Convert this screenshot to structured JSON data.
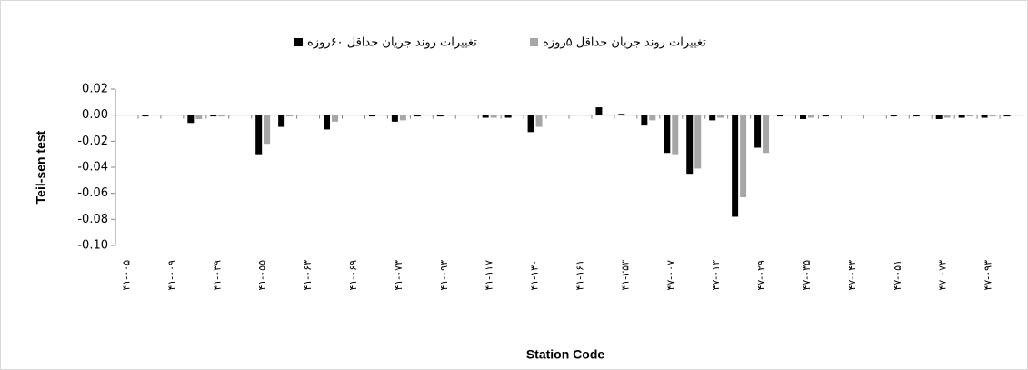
{
  "chart_data": {
    "type": "bar",
    "categories": [
      "۴۱-۰۰۵",
      null,
      "۴۱-۰۰۹",
      null,
      "۴۱-۰۳۹",
      null,
      "۴۱-۰۵۵",
      null,
      "۴۱-۰۶۳",
      null,
      "۴۱-۰۶۹",
      null,
      "۴۱-۰۷۳",
      null,
      "۴۱-۰۹۳",
      null,
      "۴۱-۱۱۷",
      null,
      "۴۱-۱۳۰",
      null,
      "۴۱-۱۶۱",
      null,
      "۴۱-۲۵۳",
      null,
      "۴۷-۰۰۷",
      null,
      "۴۷-۰۱۳",
      null,
      "۴۷-۰۲۹",
      null,
      "۴۷-۰۳۵",
      null,
      "۴۷-۰۴۳",
      null,
      "۴۷-۰۵۱",
      null,
      "۴۷-۰۷۳",
      null,
      "۴۷-۰۹۳",
      null
    ],
    "series": [
      {
        "name": "تغییرات روند جریان حداقل ۶۰روزه",
        "color": "#000000",
        "values": [
          0,
          -0.001,
          0,
          -0.006,
          -0.001,
          0,
          -0.03,
          -0.009,
          0,
          -0.011,
          0,
          -0.001,
          -0.005,
          -0.001,
          -0.001,
          0,
          -0.002,
          -0.002,
          -0.013,
          0,
          0,
          0.006,
          0.001,
          -0.008,
          -0.029,
          -0.045,
          -0.004,
          -0.078,
          -0.025,
          -0.001,
          -0.003,
          -0.001,
          0,
          0,
          -0.001,
          -0.001,
          -0.003,
          -0.002,
          -0.002,
          -0.001
        ]
      },
      {
        "name": "تغییرات روند جریان حداقل ۵روزه",
        "color": "#a6a6a6",
        "values": [
          0,
          0,
          0,
          -0.003,
          -0.001,
          0,
          -0.022,
          -0.001,
          0,
          -0.005,
          0,
          0,
          -0.004,
          0,
          0,
          0,
          -0.002,
          0,
          -0.009,
          0,
          0,
          0,
          0,
          -0.004,
          -0.03,
          -0.041,
          -0.002,
          -0.063,
          -0.029,
          0,
          -0.002,
          0,
          0,
          0,
          0,
          0,
          -0.002,
          -0.001,
          -0.001,
          0
        ]
      }
    ],
    "y_label": "Teil-sen test",
    "x_label": "Station Code",
    "ylim": [
      -0.1,
      0.02
    ],
    "yticks": [
      {
        "value": -0.1,
        "label": "-0.10"
      },
      {
        "value": -0.08,
        "label": "-0.08"
      },
      {
        "value": -0.06,
        "label": "-0.06"
      },
      {
        "value": -0.04,
        "label": "-0.04"
      },
      {
        "value": -0.02,
        "label": "-0.02"
      },
      {
        "value": 0,
        "label": "0.00"
      },
      {
        "value": 0.02,
        "label": "0.02"
      }
    ],
    "grid": false,
    "legend": "top"
  }
}
